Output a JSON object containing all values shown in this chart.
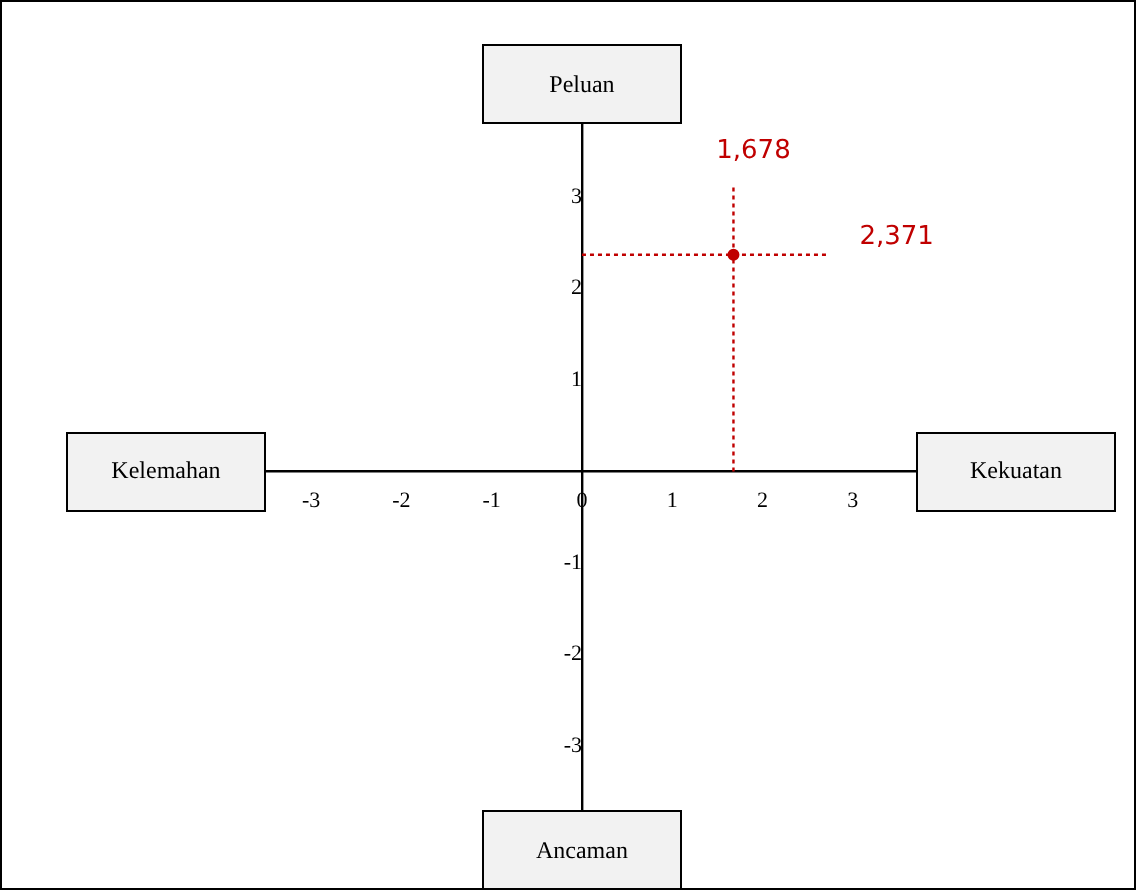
{
  "chart_data": {
    "type": "scatter",
    "x": [
      1.678
    ],
    "values": [
      2.371
    ],
    "color": "#c00000",
    "xlim": [
      -3.5,
      3.7
    ],
    "ylim": [
      -3.7,
      3.8
    ],
    "xticks": [
      -3,
      -2,
      -1,
      0,
      1,
      2,
      3
    ],
    "yticks": [
      -3,
      -2,
      -1,
      1,
      2,
      3
    ],
    "grid": false,
    "legend": false,
    "ref_lines": [
      {
        "axis": "x",
        "value": 1.678,
        "label": "1,678",
        "color": "#c00000",
        "line_style": "dotted"
      },
      {
        "axis": "y",
        "value": 2.371,
        "label": "2,371",
        "color": "#c00000",
        "line_style": "dotted"
      }
    ],
    "annotations": [
      "Peluan",
      "Ancaman",
      "Kelemahan",
      "Kekuatan"
    ]
  }
}
